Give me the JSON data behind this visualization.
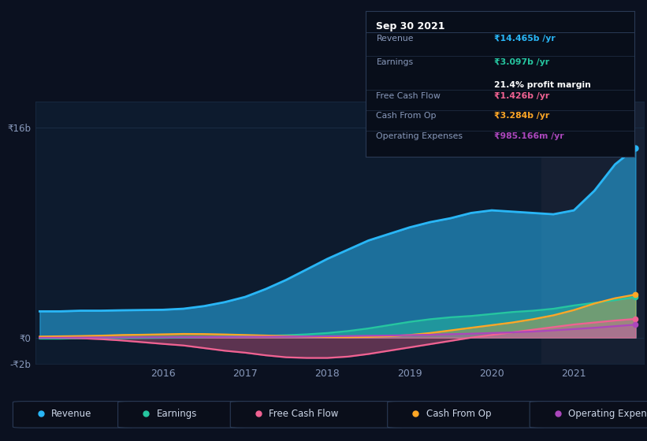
{
  "bg_color": "#0b1120",
  "plot_bg_color": "#0d1b2e",
  "grid_color": "#1a2d45",
  "revenue_color": "#29b6f6",
  "earnings_color": "#26c6a0",
  "free_cash_flow_color": "#f06292",
  "cash_from_op_color": "#ffa726",
  "operating_expenses_color": "#ab47bc",
  "highlight_color": "#162033",
  "tooltip_bg": "#080e1a",
  "tooltip_border": "#2a3a55",
  "label_color": "#8899bb",
  "text_color": "#ccd6e8",
  "title_box": {
    "date": "Sep 30 2021",
    "revenue_label": "Revenue",
    "revenue_val": "₹14.465b /yr",
    "earnings_label": "Earnings",
    "earnings_val": "₹3.097b /yr",
    "profit_margin": "21.4% profit margin",
    "fcf_label": "Free Cash Flow",
    "fcf_val": "₹1.426b /yr",
    "cfo_label": "Cash From Op",
    "cfo_val": "₹3.284b /yr",
    "opex_label": "Operating Expenses",
    "opex_val": "₹985.166m /yr"
  },
  "ylim_min": -2000000000,
  "ylim_max": 18000000000,
  "revenue_x": [
    2014.5,
    2014.75,
    2015.0,
    2015.25,
    2015.5,
    2015.75,
    2016.0,
    2016.25,
    2016.5,
    2016.75,
    2017.0,
    2017.25,
    2017.5,
    2017.75,
    2018.0,
    2018.25,
    2018.5,
    2018.75,
    2019.0,
    2019.25,
    2019.5,
    2019.75,
    2020.0,
    2020.25,
    2020.5,
    2020.75,
    2021.0,
    2021.25,
    2021.5,
    2021.75
  ],
  "revenue_y": [
    2000000000.0,
    2000000000.0,
    2050000000.0,
    2050000000.0,
    2080000000.0,
    2100000000.0,
    2120000000.0,
    2200000000.0,
    2400000000.0,
    2700000000.0,
    3100000000.0,
    3700000000.0,
    4400000000.0,
    5200000000.0,
    6000000000.0,
    6700000000.0,
    7400000000.0,
    7900000000.0,
    8400000000.0,
    8800000000.0,
    9100000000.0,
    9500000000.0,
    9700000000.0,
    9600000000.0,
    9500000000.0,
    9400000000.0,
    9700000000.0,
    11200000000.0,
    13200000000.0,
    14465000000.0
  ],
  "earnings_x": [
    2014.5,
    2014.75,
    2015.0,
    2015.25,
    2015.5,
    2015.75,
    2016.0,
    2016.25,
    2016.5,
    2016.75,
    2017.0,
    2017.25,
    2017.5,
    2017.75,
    2018.0,
    2018.25,
    2018.5,
    2018.75,
    2019.0,
    2019.25,
    2019.5,
    2019.75,
    2020.0,
    2020.25,
    2020.5,
    2020.75,
    2021.0,
    2021.25,
    2021.5,
    2021.75
  ],
  "earnings_y": [
    -80000000.0,
    -80000000.0,
    -60000000.0,
    -50000000.0,
    -40000000.0,
    -30000000.0,
    -20000000.0,
    0.0,
    30000000.0,
    60000000.0,
    90000000.0,
    130000000.0,
    180000000.0,
    250000000.0,
    350000000.0,
    500000000.0,
    700000000.0,
    950000000.0,
    1200000000.0,
    1400000000.0,
    1550000000.0,
    1650000000.0,
    1800000000.0,
    1950000000.0,
    2050000000.0,
    2200000000.0,
    2450000000.0,
    2650000000.0,
    2850000000.0,
    3097000000.0
  ],
  "fcf_x": [
    2014.5,
    2014.75,
    2015.0,
    2015.25,
    2015.5,
    2015.75,
    2016.0,
    2016.25,
    2016.5,
    2016.75,
    2017.0,
    2017.25,
    2017.5,
    2017.75,
    2018.0,
    2018.25,
    2018.5,
    2018.75,
    2019.0,
    2019.25,
    2019.5,
    2019.75,
    2020.0,
    2020.25,
    2020.5,
    2020.75,
    2021.0,
    2021.25,
    2021.5,
    2021.75
  ],
  "fcf_y": [
    0.0,
    -20000000.0,
    -50000000.0,
    -120000000.0,
    -220000000.0,
    -350000000.0,
    -480000000.0,
    -600000000.0,
    -800000000.0,
    -1000000000.0,
    -1150000000.0,
    -1350000000.0,
    -1500000000.0,
    -1550000000.0,
    -1550000000.0,
    -1450000000.0,
    -1250000000.0,
    -1000000000.0,
    -750000000.0,
    -500000000.0,
    -250000000.0,
    0.0,
    200000000.0,
    400000000.0,
    600000000.0,
    800000000.0,
    1000000000.0,
    1150000000.0,
    1300000000.0,
    1426000000.0
  ],
  "cfo_x": [
    2014.5,
    2014.75,
    2015.0,
    2015.25,
    2015.5,
    2015.75,
    2016.0,
    2016.25,
    2016.5,
    2016.75,
    2017.0,
    2017.25,
    2017.5,
    2017.75,
    2018.0,
    2018.25,
    2018.5,
    2018.75,
    2019.0,
    2019.25,
    2019.5,
    2019.75,
    2020.0,
    2020.25,
    2020.5,
    2020.75,
    2021.0,
    2021.25,
    2021.5,
    2021.75
  ],
  "cfo_y": [
    80000000.0,
    100000000.0,
    120000000.0,
    150000000.0,
    200000000.0,
    220000000.0,
    250000000.0,
    280000000.0,
    270000000.0,
    240000000.0,
    200000000.0,
    160000000.0,
    120000000.0,
    80000000.0,
    40000000.0,
    30000000.0,
    50000000.0,
    100000000.0,
    200000000.0,
    350000000.0,
    550000000.0,
    750000000.0,
    950000000.0,
    1150000000.0,
    1400000000.0,
    1700000000.0,
    2100000000.0,
    2600000000.0,
    3000000000.0,
    3284000000.0
  ],
  "opex_x": [
    2014.5,
    2014.75,
    2015.0,
    2015.25,
    2015.5,
    2015.75,
    2016.0,
    2016.25,
    2016.5,
    2016.75,
    2017.0,
    2017.25,
    2017.5,
    2017.75,
    2018.0,
    2018.25,
    2018.5,
    2018.75,
    2019.0,
    2019.25,
    2019.5,
    2019.75,
    2020.0,
    2020.25,
    2020.5,
    2020.75,
    2021.0,
    2021.25,
    2021.5,
    2021.75
  ],
  "opex_y": [
    -20000000.0,
    -10000000.0,
    0.0,
    10000000.0,
    10000000.0,
    20000000.0,
    20000000.0,
    30000000.0,
    40000000.0,
    50000000.0,
    60000000.0,
    70000000.0,
    80000000.0,
    90000000.0,
    100000000.0,
    120000000.0,
    140000000.0,
    160000000.0,
    190000000.0,
    220000000.0,
    260000000.0,
    300000000.0,
    350000000.0,
    400000000.0,
    460000000.0,
    550000000.0,
    650000000.0,
    750000000.0,
    870000000.0,
    985166000.0
  ],
  "legend_items": [
    {
      "label": "Revenue",
      "color": "#29b6f6"
    },
    {
      "label": "Earnings",
      "color": "#26c6a0"
    },
    {
      "label": "Free Cash Flow",
      "color": "#f06292"
    },
    {
      "label": "Cash From Op",
      "color": "#ffa726"
    },
    {
      "label": "Operating Expenses",
      "color": "#ab47bc"
    }
  ]
}
